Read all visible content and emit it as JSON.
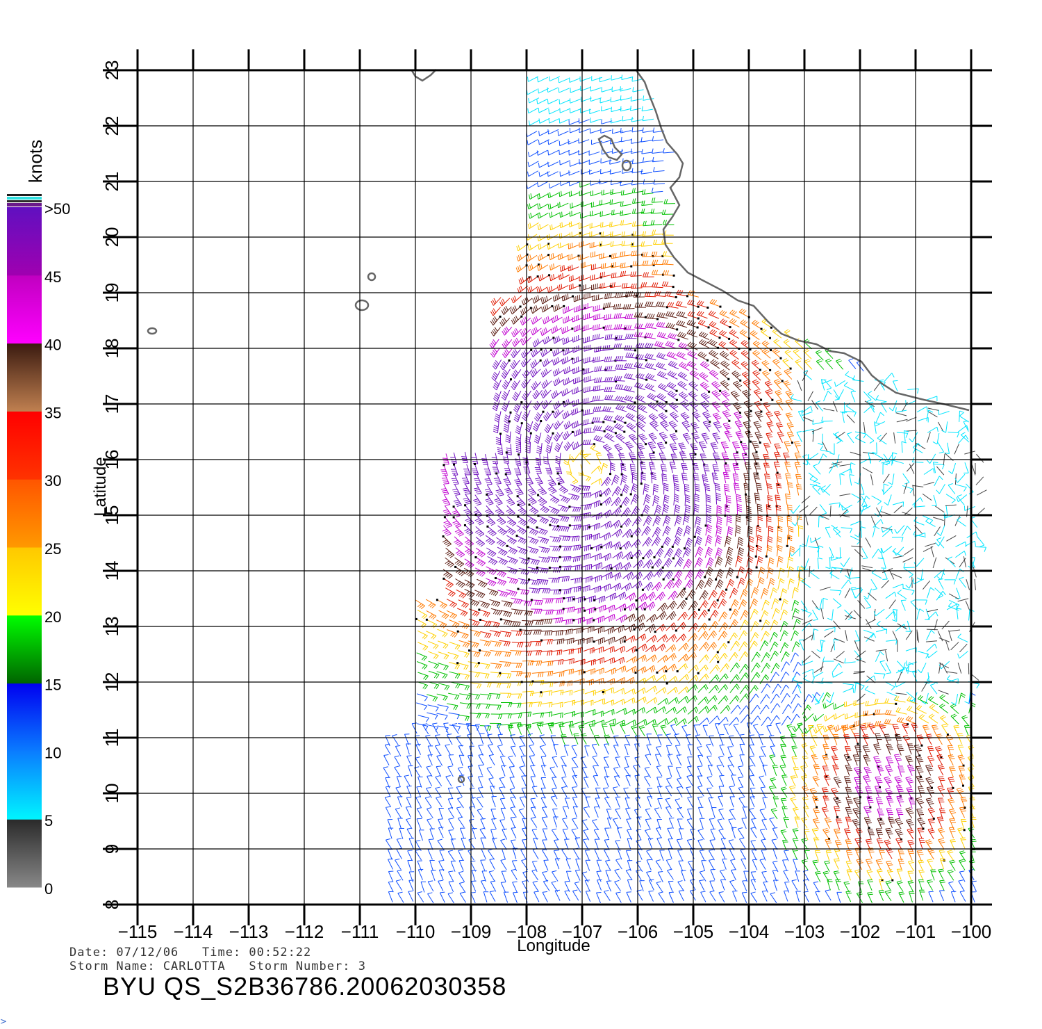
{
  "map": {
    "x_axis": {
      "title": "Longitude",
      "ticks": [
        "−115",
        "−114",
        "−113",
        "−112",
        "−111",
        "−110",
        "−109",
        "−108",
        "−107",
        "−106",
        "−105",
        "−104",
        "−103",
        "−102",
        "−101",
        "−100"
      ]
    },
    "y_axis": {
      "title": "Latitude",
      "ticks": [
        "8",
        "9",
        "10",
        "11",
        "12",
        "13",
        "14",
        "15",
        "16",
        "17",
        "18",
        "19",
        "20",
        "21",
        "22",
        "23"
      ]
    },
    "lon_range": [
      -115,
      -100
    ],
    "lat_range": [
      8,
      23
    ],
    "storm_center_approx": {
      "lon": -106.9,
      "lat": 15.9
    },
    "secondary_wind_max_approx": {
      "lon": -101.5,
      "lat": 10.0
    }
  },
  "colorbar": {
    "unit": "knots",
    "labels": [
      ">50",
      "45",
      "40",
      "35",
      "30",
      "25",
      "20",
      "15",
      "10",
      "5",
      "0"
    ],
    "bands": [
      {
        "min": 0,
        "max": 5,
        "colors": [
          "#888888",
          "#2a2a2a"
        ]
      },
      {
        "min": 5,
        "max": 10,
        "colors": [
          "#00f5ff",
          "#0a7cff"
        ]
      },
      {
        "min": 10,
        "max": 15,
        "colors": [
          "#0a7cff",
          "#0000f0"
        ]
      },
      {
        "min": 15,
        "max": 20,
        "colors": [
          "#006400",
          "#00ff00"
        ]
      },
      {
        "min": 20,
        "max": 25,
        "colors": [
          "#ffff00",
          "#ffc800"
        ]
      },
      {
        "min": 25,
        "max": 30,
        "colors": [
          "#ff9900",
          "#ff5500"
        ]
      },
      {
        "min": 30,
        "max": 35,
        "colors": [
          "#ff3300",
          "#ff0000"
        ]
      },
      {
        "min": 35,
        "max": 40,
        "colors": [
          "#c08050",
          "#3a1a10"
        ]
      },
      {
        "min": 40,
        "max": 45,
        "colors": [
          "#ff00ff",
          "#c000c0"
        ]
      },
      {
        "min": 45,
        "max": 50,
        "colors": [
          "#a000b0",
          "#6010c0"
        ]
      }
    ]
  },
  "footer": {
    "date_line": "Date: 07/12/06   Time: 00:52:22",
    "storm_line": "Storm Name: CARLOTTA   Storm Number: 3",
    "product_id": "BYU  QS_S2B36786.20062030358",
    "stray_mark": ">"
  }
}
